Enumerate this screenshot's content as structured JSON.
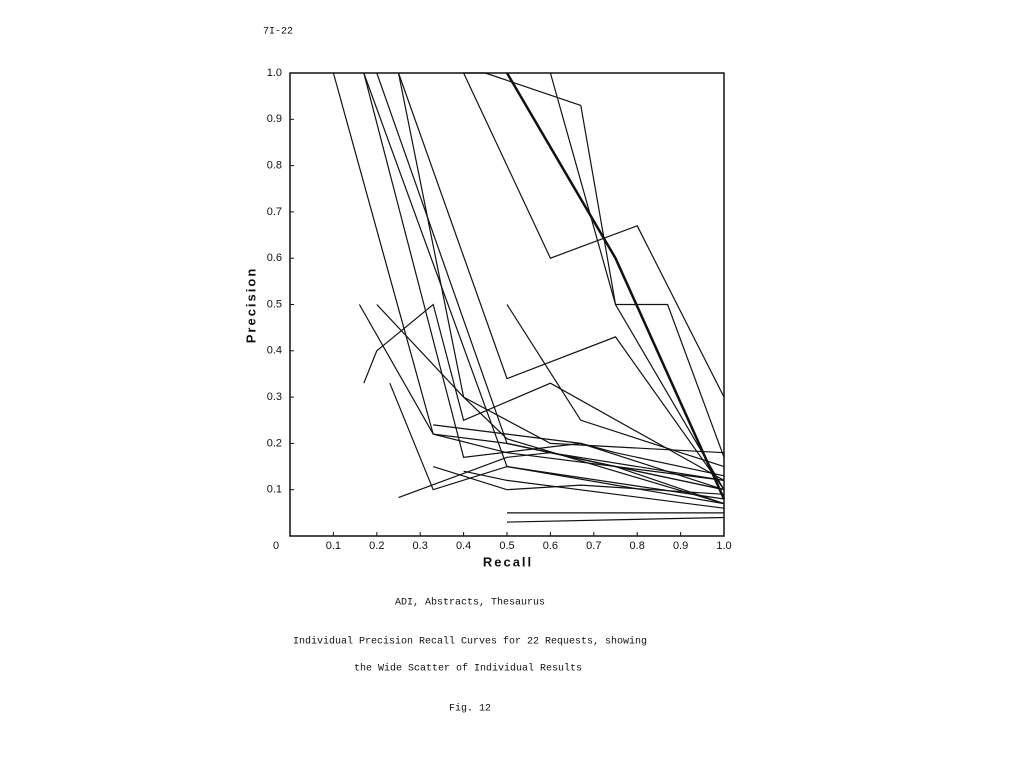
{
  "page_number": "7I-22",
  "chart_data": {
    "type": "line",
    "title": "ADI, Abstracts, Thesaurus",
    "caption_lines": [
      "Individual Precision Recall Curves for 22 Requests, showing",
      "the Wide Scatter of Individual Results"
    ],
    "figure_label": "Fig. 12",
    "x_label": "Recall",
    "y_label": "Precision",
    "xlim": [
      0,
      1
    ],
    "ylim": [
      0,
      1
    ],
    "xticks": [
      0,
      0.1,
      0.2,
      0.3,
      0.4,
      0.5,
      0.6,
      0.7,
      0.8,
      0.9,
      {
        "value": 1,
        "label": "1.0"
      }
    ],
    "yticks": [
      0.1,
      0.2,
      0.3,
      0.4,
      0.5,
      0.6,
      0.7,
      0.8,
      0.9,
      {
        "value": 1,
        "label": "1.0"
      }
    ],
    "color": "#111111",
    "series": [
      {
        "x": [
          0.1,
          0.33,
          0.5,
          1.0
        ],
        "values": [
          1.0,
          0.22,
          0.18,
          0.12
        ]
      },
      {
        "x": [
          0.17,
          0.5,
          1.0
        ],
        "values": [
          1.0,
          0.15,
          0.08
        ]
      },
      {
        "x": [
          0.17,
          0.4,
          0.67,
          1.0
        ],
        "values": [
          1.0,
          0.17,
          0.2,
          0.1
        ]
      },
      {
        "x": [
          0.2,
          0.5,
          1.0
        ],
        "values": [
          1.0,
          0.2,
          0.1
        ]
      },
      {
        "x": [
          0.25,
          0.4,
          0.5,
          1.0
        ],
        "values": [
          1.0,
          0.3,
          0.21,
          0.07
        ]
      },
      {
        "x": [
          0.25,
          0.5,
          0.75,
          1.0
        ],
        "values": [
          1.0,
          0.34,
          0.43,
          0.1
        ]
      },
      {
        "x": [
          0.4,
          0.6,
          0.8,
          1.0
        ],
        "values": [
          1.0,
          0.6,
          0.67,
          0.3
        ]
      },
      {
        "x": [
          0.4,
          0.45,
          0.67,
          0.75,
          1.0
        ],
        "values": [
          1.0,
          1.0,
          0.93,
          0.5,
          0.1
        ]
      },
      {
        "x": [
          0.5,
          0.75,
          1.0
        ],
        "values": [
          1.0,
          0.6,
          0.08
        ]
      },
      {
        "x": [
          0.6,
          0.75,
          0.87,
          1.0
        ],
        "values": [
          1.0,
          0.5,
          0.5,
          0.17
        ]
      },
      {
        "x": [
          0.5,
          0.67,
          1.0
        ],
        "values": [
          0.5,
          0.25,
          0.15
        ]
      },
      {
        "x": [
          0.17,
          0.2,
          0.33,
          0.4,
          0.6,
          1.0
        ],
        "values": [
          0.33,
          0.4,
          0.5,
          0.25,
          0.33,
          0.12
        ]
      },
      {
        "x": [
          0.16,
          0.33,
          0.5,
          1.0
        ],
        "values": [
          0.5,
          0.22,
          0.2,
          0.1
        ]
      },
      {
        "x": [
          0.23,
          0.33,
          0.5,
          1.0
        ],
        "values": [
          0.33,
          0.1,
          0.15,
          0.07
        ]
      },
      {
        "x": [
          0.25,
          0.5,
          0.6,
          1.0
        ],
        "values": [
          0.083,
          0.17,
          0.18,
          0.12
        ]
      },
      {
        "x": [
          0.33,
          0.5,
          0.67,
          1.0
        ],
        "values": [
          0.15,
          0.1,
          0.11,
          0.09
        ]
      },
      {
        "x": [
          0.4,
          0.5,
          1.0
        ],
        "values": [
          0.14,
          0.12,
          0.06
        ]
      },
      {
        "x": [
          0.5,
          1.0
        ],
        "values": [
          0.05,
          0.05
        ]
      },
      {
        "x": [
          0.5,
          1.0
        ],
        "values": [
          0.03,
          0.04
        ]
      },
      {
        "x": [
          0.5,
          0.75,
          1.0
        ],
        "values": [
          0.2,
          0.15,
          0.07
        ]
      },
      {
        "x": [
          0.2,
          0.4,
          0.6,
          1.0
        ],
        "values": [
          0.5,
          0.3,
          0.2,
          0.18
        ]
      },
      {
        "x": [
          0.33,
          0.5,
          0.67,
          0.75,
          1.0
        ],
        "values": [
          0.24,
          0.22,
          0.2,
          0.18,
          0.13
        ]
      }
    ]
  }
}
